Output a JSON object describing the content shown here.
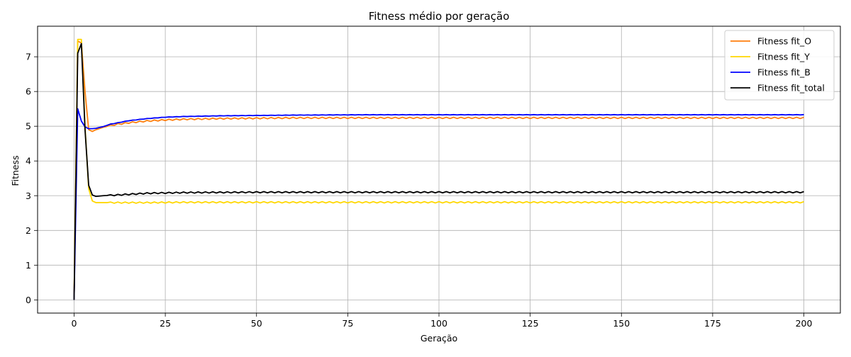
{
  "chart_data": {
    "type": "line",
    "title": "Fitness médio por geração",
    "xlabel": "Geração",
    "ylabel": "Fitness",
    "xlim": [
      -10,
      210
    ],
    "ylim": [
      -0.38,
      7.88
    ],
    "xticks": [
      0,
      25,
      50,
      75,
      100,
      125,
      150,
      175,
      200
    ],
    "yticks": [
      0,
      1,
      2,
      3,
      4,
      5,
      6,
      7
    ],
    "grid": true,
    "legend_position": "top-right",
    "series": [
      {
        "name": "Fitness fit_O",
        "color": "#ff7f0e",
        "steady_oscillation": 0.018,
        "x": [
          0,
          1,
          2,
          3,
          4,
          5,
          6,
          8,
          10,
          12,
          15,
          20,
          25,
          30,
          40,
          50,
          60,
          70,
          80,
          90,
          100,
          120,
          140,
          160,
          180,
          200
        ],
        "y": [
          0,
          7.45,
          7.4,
          6.0,
          4.9,
          4.85,
          4.9,
          4.97,
          5.02,
          5.06,
          5.1,
          5.15,
          5.18,
          5.2,
          5.22,
          5.23,
          5.24,
          5.24,
          5.24,
          5.24,
          5.24,
          5.24,
          5.24,
          5.24,
          5.24,
          5.24
        ]
      },
      {
        "name": "Fitness fit_Y",
        "color": "#ffd700",
        "steady_oscillation": 0.018,
        "x": [
          0,
          1,
          2,
          3,
          4,
          5,
          6,
          8,
          10,
          15,
          20,
          30,
          50,
          75,
          100,
          125,
          150,
          175,
          200
        ],
        "y": [
          0,
          7.5,
          7.5,
          5.0,
          3.2,
          2.85,
          2.8,
          2.8,
          2.8,
          2.8,
          2.8,
          2.81,
          2.81,
          2.81,
          2.81,
          2.81,
          2.81,
          2.81,
          2.81
        ]
      },
      {
        "name": "Fitness fit_B",
        "color": "#0000ff",
        "steady_oscillation": 0.004,
        "x": [
          0,
          1,
          2,
          3,
          4,
          5,
          6,
          8,
          10,
          12,
          15,
          20,
          25,
          30,
          40,
          50,
          60,
          80,
          100,
          125,
          150,
          175,
          200
        ],
        "y": [
          0,
          5.5,
          5.15,
          4.98,
          4.93,
          4.93,
          4.94,
          4.99,
          5.06,
          5.1,
          5.16,
          5.22,
          5.26,
          5.28,
          5.3,
          5.31,
          5.32,
          5.33,
          5.33,
          5.33,
          5.33,
          5.33,
          5.33
        ]
      },
      {
        "name": "Fitness fit_total",
        "color": "#000000",
        "steady_oscillation": 0.018,
        "x": [
          0,
          1,
          2,
          3,
          4,
          5,
          6,
          7,
          8,
          10,
          15,
          20,
          30,
          50,
          75,
          100,
          125,
          150,
          175,
          200
        ],
        "y": [
          0,
          7.1,
          7.38,
          4.9,
          3.3,
          3.02,
          2.98,
          2.99,
          3.0,
          3.01,
          3.04,
          3.07,
          3.09,
          3.1,
          3.1,
          3.1,
          3.1,
          3.1,
          3.1,
          3.1
        ]
      }
    ]
  }
}
